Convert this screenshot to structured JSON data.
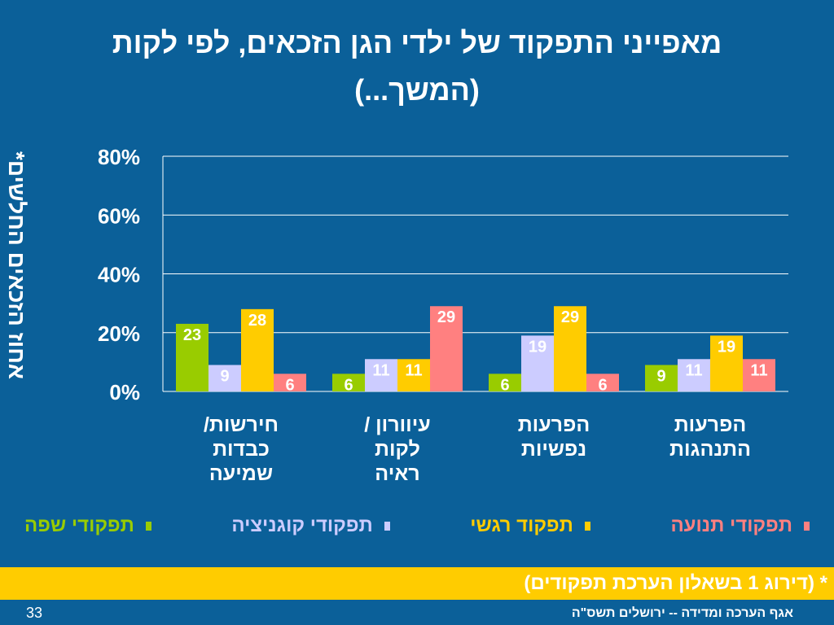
{
  "title_line1": "מאפייני התפקוד של ילדי הגן הזכאים, לפי לקות",
  "title_line2": "(המשך...)",
  "note": "* (דירוג 1 בשאלון הערכת תפקודים)",
  "footer": "אגף הערכה ומדידה -- ירושלים תשס\"ה",
  "page_number": "33",
  "chart_data": {
    "type": "bar",
    "ylabel": "אחוז הזכאים החלשים*",
    "ylim": [
      0,
      80
    ],
    "yticks": [
      "0%",
      "20%",
      "40%",
      "60%",
      "80%"
    ],
    "grid": true,
    "legend_position": "bottom",
    "categories": [
      [
        "חירשות/",
        "כבדות",
        "שמיעה"
      ],
      [
        "עיוורון /",
        "לקות",
        "ראיה"
      ],
      [
        "הפרעות",
        "נפשיות"
      ],
      [
        "הפרעות",
        "התנהגות"
      ]
    ],
    "series": [
      {
        "name": "תפקודי שפה",
        "color": "#99cc00",
        "values": [
          23,
          6,
          6,
          9
        ]
      },
      {
        "name": "תפקודי קוגניציה",
        "color": "#ccccff",
        "values": [
          9,
          11,
          19,
          11
        ]
      },
      {
        "name": "תפקוד רגשי",
        "color": "#ffcc00",
        "values": [
          28,
          11,
          29,
          19
        ]
      },
      {
        "name": "תפקודי תנועה",
        "color": "#ff8080",
        "values": [
          6,
          29,
          6,
          11
        ]
      }
    ]
  }
}
